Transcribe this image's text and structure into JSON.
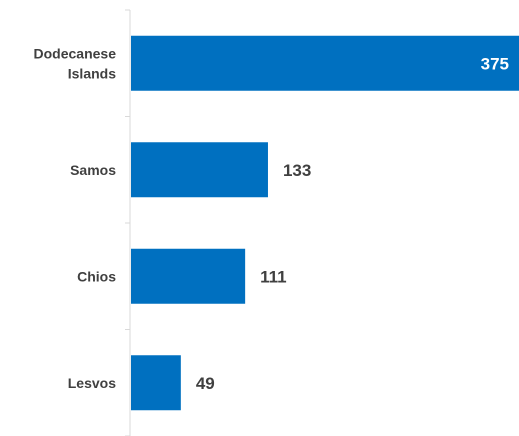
{
  "chart_data": {
    "type": "bar",
    "orientation": "horizontal",
    "categories": [
      "Dodecanese Islands",
      "Samos",
      "Chios",
      "Lesvos"
    ],
    "values": [
      375,
      133,
      111,
      49
    ],
    "data_labels": [
      "375",
      "133",
      "111",
      "49"
    ],
    "title": "",
    "xlabel": "",
    "ylabel": "",
    "xlim": [
      0,
      375
    ],
    "grid": false,
    "legend": "none",
    "colors": {
      "bar": "#0070c0",
      "label_outside": "#404040",
      "label_inside": "#ffffff",
      "axis": "#d9d9d9",
      "category_text": "#404040"
    }
  }
}
